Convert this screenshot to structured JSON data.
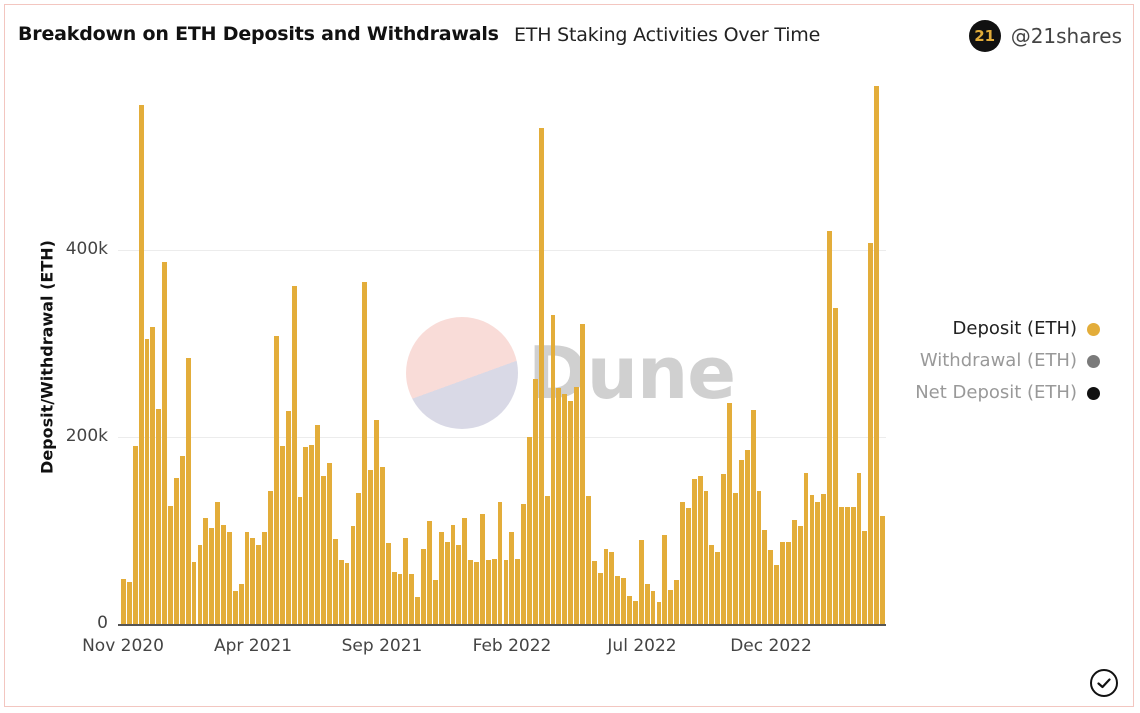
{
  "header": {
    "title": "Breakdown on ETH Deposits and Withdrawals",
    "subtitle": "ETH Staking Activities Over Time",
    "brand_logo_text": "21",
    "brand_handle": "@21shares"
  },
  "watermark": {
    "text": "Dune"
  },
  "legend": {
    "items": [
      {
        "label": "Deposit (ETH)",
        "color": "#e3ad3a",
        "text_color": "#222"
      },
      {
        "label": "Withdrawal (ETH)",
        "color": "#7a7a7a",
        "text_color": "#999"
      },
      {
        "label": "Net Deposit (ETH)",
        "color": "#111111",
        "text_color": "#999"
      }
    ]
  },
  "axis": {
    "ylabel": "Deposit/Withdrawal (ETH)",
    "yticks": [
      "0",
      "200k",
      "400k"
    ],
    "xticks": [
      "Nov 2020",
      "Apr 2021",
      "Sep 2021",
      "Feb 2022",
      "Jul 2022",
      "Dec 2022"
    ]
  },
  "chart_data": {
    "type": "bar",
    "title": "Breakdown on ETH Deposits and Withdrawals",
    "subtitle": "ETH Staking Activities Over Time",
    "xlabel": "",
    "ylabel": "Deposit/Withdrawal (ETH)",
    "ylim": [
      0,
      600000
    ],
    "yticks": [
      0,
      200000,
      400000
    ],
    "xtick_labels": [
      "Nov 2020",
      "Apr 2021",
      "Sep 2021",
      "Feb 2022",
      "Jul 2022",
      "Dec 2022"
    ],
    "x_range": [
      "Nov 2020",
      "Apr 2023"
    ],
    "grid": true,
    "legend_position": "right",
    "series": [
      {
        "name": "Deposit (ETH)",
        "color": "#e3ad3a",
        "values": [
          48000,
          45000,
          190000,
          555000,
          305000,
          318000,
          230000,
          387000,
          126000,
          156000,
          180000,
          285000,
          66000,
          85000,
          113000,
          103000,
          131000,
          106000,
          98000,
          35000,
          43000,
          98000,
          92000,
          85000,
          98000,
          142000,
          308000,
          190000,
          228000,
          362000,
          136000,
          189000,
          191000,
          213000,
          158000,
          172000,
          91000,
          68000,
          65000,
          105000,
          140000,
          366000,
          165000,
          218000,
          168000,
          87000,
          56000,
          53000,
          92000,
          53000,
          29000,
          80000,
          110000,
          47000,
          98000,
          88000,
          106000,
          85000,
          113000,
          68000,
          66000,
          118000,
          68000,
          70000,
          130000,
          68000,
          98000,
          69000,
          128000,
          200000,
          262000,
          530000,
          137000,
          330000,
          252000,
          246000,
          238000,
          254000,
          321000,
          137000,
          67000,
          55000,
          80000,
          77000,
          51000,
          49000,
          30000,
          25000,
          90000,
          43000,
          35000,
          24000,
          95000,
          36000,
          47000,
          130000,
          124000,
          155000,
          158000,
          142000,
          84000,
          77000,
          160000,
          236000,
          140000,
          175000,
          186000,
          229000,
          142000,
          101000,
          79000,
          63000,
          88000,
          88000,
          111000,
          105000,
          162000,
          138000,
          130000,
          139000,
          420000,
          338000,
          125000,
          125000,
          125000,
          162000,
          100000,
          407000,
          575000,
          116000
        ]
      },
      {
        "name": "Withdrawal (ETH)",
        "color": "#7a7a7a",
        "values": []
      },
      {
        "name": "Net Deposit (ETH)",
        "color": "#111111",
        "values": []
      }
    ]
  }
}
